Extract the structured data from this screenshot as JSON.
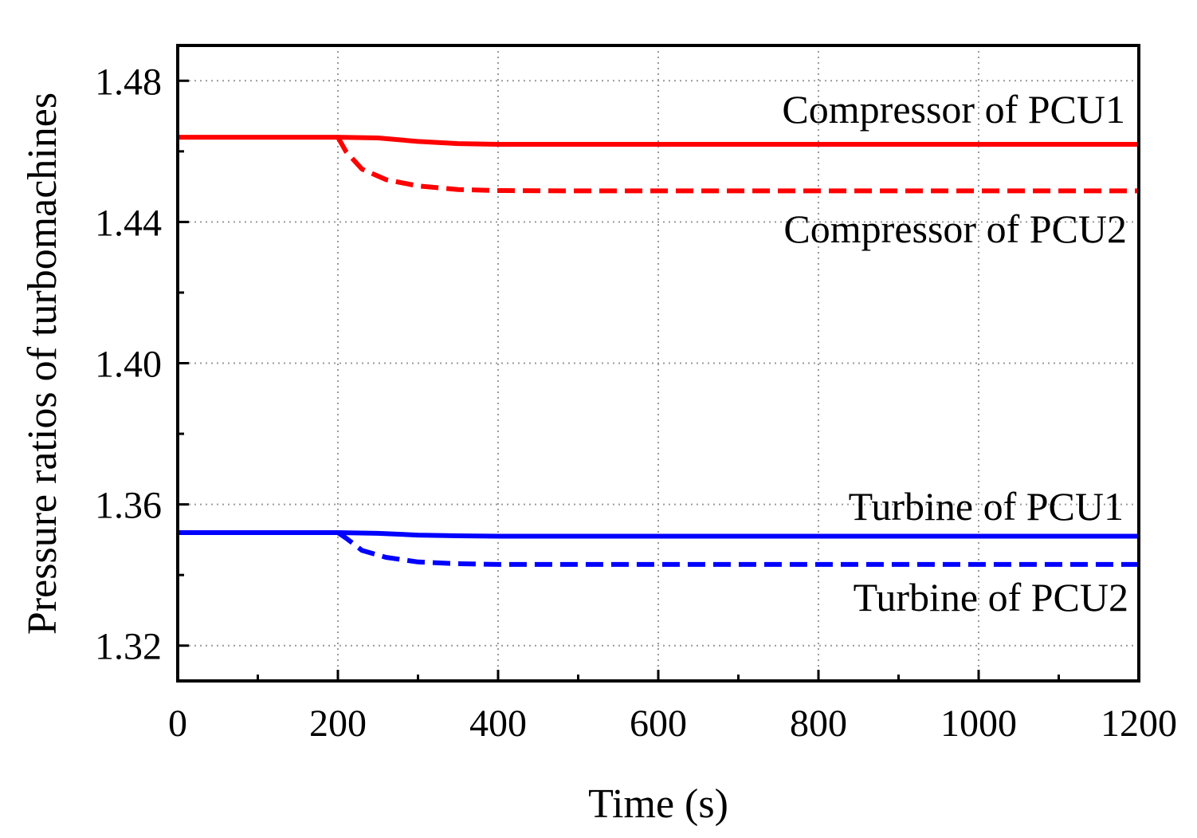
{
  "chart_data": {
    "type": "line",
    "title": "",
    "xlabel": "Time (s)",
    "ylabel": "Pressure ratios of turbomachines",
    "xlim": [
      0,
      1200
    ],
    "ylim": [
      1.31,
      1.49
    ],
    "x_ticks": [
      0,
      200,
      400,
      600,
      800,
      1000,
      1200
    ],
    "x_tick_labels": [
      "0",
      "200",
      "400",
      "600",
      "800",
      "1000",
      "1200"
    ],
    "y_ticks": [
      1.32,
      1.36,
      1.4,
      1.44,
      1.48
    ],
    "y_tick_labels": [
      "1.32",
      "1.36",
      "1.40",
      "1.44",
      "1.48"
    ],
    "grid": true,
    "series": [
      {
        "name": "Compressor of PCU1",
        "color": "#ff0000",
        "style": "solid",
        "x": [
          0,
          200,
          250,
          300,
          350,
          400,
          450,
          500,
          600,
          800,
          1000,
          1200
        ],
        "y": [
          1.464,
          1.464,
          1.4638,
          1.4628,
          1.4622,
          1.462,
          1.462,
          1.462,
          1.462,
          1.462,
          1.462,
          1.462
        ]
      },
      {
        "name": "Compressor of PCU2",
        "color": "#ff0000",
        "style": "dashed",
        "x": [
          200,
          210,
          230,
          260,
          300,
          350,
          400,
          500,
          600,
          800,
          1000,
          1200
        ],
        "y": [
          1.464,
          1.46,
          1.455,
          1.452,
          1.4502,
          1.4492,
          1.4489,
          1.4488,
          1.4488,
          1.4488,
          1.4488,
          1.4488
        ]
      },
      {
        "name": "Turbine of PCU1",
        "color": "#0000ff",
        "style": "solid",
        "x": [
          0,
          200,
          250,
          300,
          350,
          400,
          500,
          600,
          800,
          1000,
          1200
        ],
        "y": [
          1.352,
          1.352,
          1.3518,
          1.3513,
          1.3511,
          1.351,
          1.351,
          1.351,
          1.351,
          1.351,
          1.351
        ]
      },
      {
        "name": "Turbine of PCU2",
        "color": "#0000ff",
        "style": "dashed",
        "x": [
          200,
          210,
          230,
          260,
          300,
          350,
          400,
          500,
          600,
          800,
          1000,
          1200
        ],
        "y": [
          1.352,
          1.3505,
          1.347,
          1.345,
          1.3437,
          1.3432,
          1.343,
          1.343,
          1.343,
          1.343,
          1.343,
          1.343
        ]
      }
    ],
    "annotations": [
      {
        "text": "Compressor of PCU1",
        "series": "Compressor of PCU1",
        "position": "above-right"
      },
      {
        "text": "Compressor of PCU2",
        "series": "Compressor of PCU2",
        "position": "below-right"
      },
      {
        "text": "Turbine of PCU1",
        "series": "Turbine of PCU1",
        "position": "above-right"
      },
      {
        "text": "Turbine of PCU2",
        "series": "Turbine of PCU2",
        "position": "below-right"
      }
    ]
  }
}
